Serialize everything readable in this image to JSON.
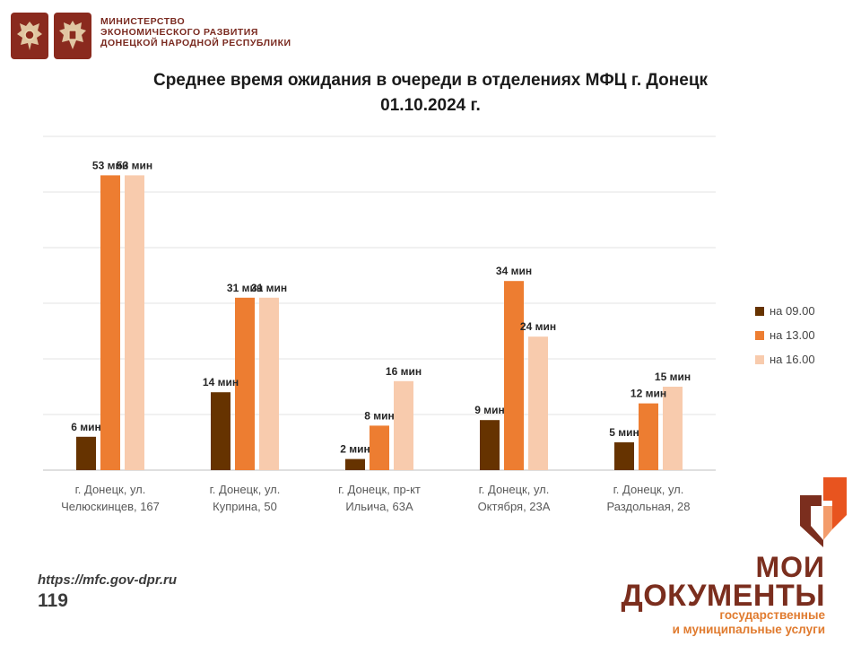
{
  "header": {
    "ministry_lines": [
      "МИНИСТЕРСТВО",
      "ЭКОНОМИЧЕСКОГО РАЗВИТИЯ",
      "ДОНЕЦКОЙ НАРОДНОЙ РЕСПУБЛИКИ"
    ]
  },
  "title_lines": [
    "Среднее время ожидания в очереди в отделениях МФЦ г. Донецк",
    "01.10.2024 г."
  ],
  "chart_data": {
    "type": "bar",
    "title": "Среднее время ожидания в очереди в отделениях МФЦ г. Донецк 01.10.2024 г.",
    "categories": [
      [
        "г. Донецк, ул.",
        "Челюскинцев, 167"
      ],
      [
        "г. Донецк, ул.",
        "Куприна, 50"
      ],
      [
        "г. Донецк, пр-кт",
        "Ильича, 63А"
      ],
      [
        "г. Донецк, ул.",
        "Октября, 23А"
      ],
      [
        "г. Донецк, ул.",
        "Раздольная, 28"
      ]
    ],
    "series": [
      {
        "name": "на 09.00",
        "color": "#663300",
        "values": [
          6,
          14,
          2,
          9,
          5
        ]
      },
      {
        "name": "на 13.00",
        "color": "#ed7d31",
        "values": [
          53,
          31,
          8,
          34,
          12
        ]
      },
      {
        "name": "на 16.00",
        "color": "#f8cbad",
        "values": [
          53,
          31,
          16,
          24,
          15
        ]
      }
    ],
    "value_suffix": " мин",
    "ylim": [
      0,
      60
    ],
    "grid": true,
    "legend": "right"
  },
  "footer": {
    "site": "https://mfc.gov-dpr.ru",
    "page": "119"
  },
  "brand": {
    "line1": "МОИ",
    "line2": "ДОКУМЕНТЫ",
    "sub1": "государственные",
    "sub2": "и муниципальные услуги"
  }
}
